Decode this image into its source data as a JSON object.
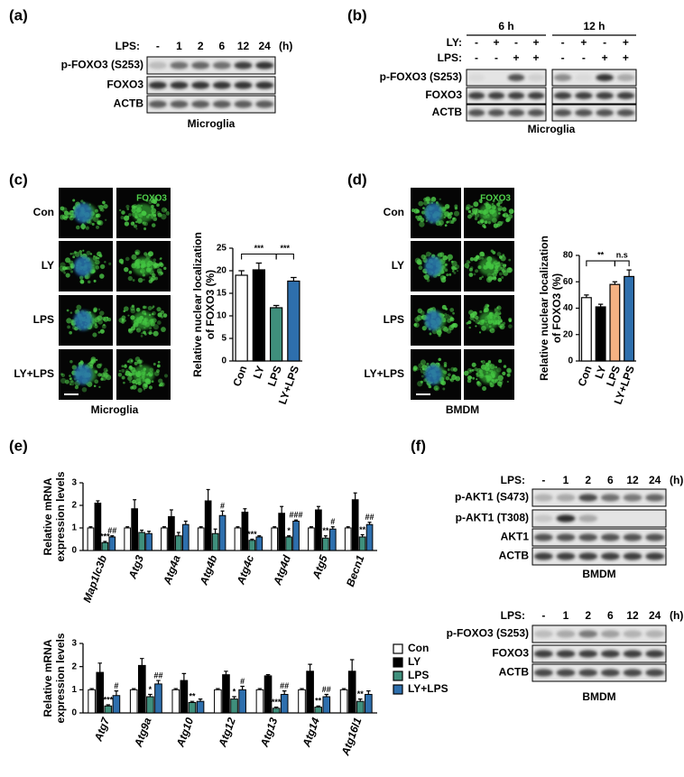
{
  "panels": {
    "a": {
      "label": "(a)",
      "treatment": "LPS:",
      "lanes": [
        "-",
        "1",
        "2",
        "6",
        "12",
        "24"
      ],
      "unit": "(h)",
      "rows": [
        "p-FOXO3 (S253)",
        "FOXO3",
        "ACTB"
      ],
      "caption": "Microglia"
    },
    "b": {
      "label": "(b)",
      "groups": [
        "6 h",
        "12 h"
      ],
      "ly_label": "LY:",
      "ly": [
        "-",
        "+",
        "-",
        "+",
        "-",
        "+",
        "-",
        "+"
      ],
      "lps_label": "LPS:",
      "lps": [
        "-",
        "-",
        "+",
        "+",
        "-",
        "-",
        "+",
        "+"
      ],
      "rows": [
        "p-FOXO3 (S253)",
        "FOXO3",
        "ACTB"
      ],
      "caption": "Microglia"
    },
    "c": {
      "label": "(c)",
      "conditions": [
        "Con",
        "LY",
        "LPS",
        "LY+LPS"
      ],
      "stain": "FOXO3",
      "caption": "Microglia"
    },
    "d": {
      "label": "(d)",
      "conditions": [
        "Con",
        "LY",
        "LPS",
        "LY+LPS"
      ],
      "stain": "FOXO3",
      "caption": "BMDM"
    },
    "e": {
      "label": "(e)"
    },
    "f": {
      "label": "(f)",
      "blots": [
        {
          "treatment": "LPS:",
          "lanes": [
            "-",
            "1",
            "2",
            "6",
            "12",
            "24"
          ],
          "unit": "(h)",
          "rows": [
            "p-AKT1 (S473)",
            "p-AKT1 (T308)",
            "AKT1",
            "ACTB"
          ],
          "caption": "BMDM"
        },
        {
          "treatment": "LPS:",
          "lanes": [
            "-",
            "1",
            "2",
            "6",
            "12",
            "24"
          ],
          "unit": "(h)",
          "rows": [
            "p-FOXO3 (S253)",
            "FOXO3",
            "ACTB"
          ],
          "caption": "BMDM"
        }
      ]
    }
  },
  "chart_data": [
    {
      "type": "bar",
      "y_label": [
        "Relative nuclear localization",
        "of FOXO3 (%)"
      ],
      "categories": [
        "Con",
        "LY",
        "LPS",
        "LY+LPS"
      ],
      "values": [
        19,
        20.2,
        11.8,
        17.7
      ],
      "errors": [
        1,
        1.5,
        0.5,
        0.8
      ],
      "colors": [
        "#ffffff",
        "#000000",
        "#3f8f7c",
        "#2e6fad"
      ],
      "ylim": [
        0,
        25
      ],
      "yticks": [
        0,
        5,
        10,
        15,
        20,
        25
      ],
      "comparisons": [
        {
          "pair": [
            "Con",
            "LPS"
          ],
          "text": "***"
        },
        {
          "pair": [
            "LPS",
            "LY+LPS"
          ],
          "text": "***"
        }
      ]
    },
    {
      "type": "bar",
      "y_label": [
        "Relative nuclear localization",
        "of FOXO3 (%)"
      ],
      "categories": [
        "Con",
        "LY",
        "LPS",
        "LY+LPS"
      ],
      "values": [
        48,
        41,
        58,
        64
      ],
      "errors": [
        2,
        2,
        2,
        5
      ],
      "colors": [
        "#ffffff",
        "#000000",
        "#f4b183",
        "#2e6fad"
      ],
      "ylim": [
        0,
        80
      ],
      "yticks": [
        0,
        20,
        40,
        60,
        80
      ],
      "comparisons": [
        {
          "pair": [
            "Con",
            "LPS"
          ],
          "text": "**"
        },
        {
          "pair": [
            "LPS",
            "LY+LPS"
          ],
          "text": "n.s"
        }
      ]
    },
    {
      "type": "grouped_bar",
      "y_label": [
        "Relative mRNA",
        "expression levels"
      ],
      "legend": false,
      "categories": [
        "Map1lc3b",
        "Atg3",
        "Atg4a",
        "Atg4b",
        "Atg4c",
        "Atg4d",
        "Atg5",
        "Becn1"
      ],
      "ylim": [
        0,
        3
      ],
      "yticks": [
        0,
        1,
        2,
        3
      ],
      "series": [
        {
          "name": "Con",
          "color": "#ffffff",
          "values": [
            1,
            1,
            1,
            1,
            1,
            1,
            1,
            1
          ],
          "errors": [
            0.05,
            0.05,
            0.05,
            0.05,
            0.05,
            0.05,
            0.05,
            0.05
          ]
        },
        {
          "name": "LY",
          "color": "#000000",
          "values": [
            2.1,
            1.85,
            1.5,
            2.2,
            1.7,
            1.65,
            1.8,
            2.25
          ],
          "errors": [
            0.1,
            0.4,
            0.3,
            0.5,
            0.15,
            0.3,
            0.15,
            0.3
          ]
        },
        {
          "name": "LPS",
          "color": "#3f8f7c",
          "values": [
            0.35,
            0.8,
            0.65,
            0.75,
            0.45,
            0.6,
            0.55,
            0.6
          ],
          "errors": [
            0.05,
            0.1,
            0.15,
            0.2,
            0.05,
            0.05,
            0.1,
            0.1
          ]
        },
        {
          "name": "LY+LPS",
          "color": "#2e6fad",
          "values": [
            0.6,
            0.75,
            1.15,
            1.55,
            0.6,
            1.3,
            0.95,
            1.15
          ],
          "errors": [
            0.05,
            0.1,
            0.15,
            0.2,
            0.05,
            0.05,
            0.1,
            0.1
          ]
        }
      ],
      "annotations": [
        {
          "text": "***",
          "category": "Map1lc3b",
          "series": "LPS"
        },
        {
          "text": "##",
          "category": "Map1lc3b",
          "series": "LY+LPS"
        },
        {
          "text": "#",
          "category": "Atg4b",
          "series": "LY+LPS"
        },
        {
          "text": "***",
          "category": "Atg4c",
          "series": "LPS"
        },
        {
          "text": "*",
          "category": "Atg4d",
          "series": "LPS"
        },
        {
          "text": "###",
          "category": "Atg4d",
          "series": "LY+LPS"
        },
        {
          "text": "**",
          "category": "Atg5",
          "series": "LPS"
        },
        {
          "text": "#",
          "category": "Atg5",
          "series": "LY+LPS"
        },
        {
          "text": "**",
          "category": "Becn1",
          "series": "LPS"
        },
        {
          "text": "##",
          "category": "Becn1",
          "series": "LY+LPS"
        }
      ]
    },
    {
      "type": "grouped_bar",
      "y_label": [
        "Relative mRNA",
        "expression levels"
      ],
      "legend": true,
      "categories": [
        "Atg7",
        "Atg9a",
        "Atg10",
        "Atg12",
        "Atg13",
        "Atg14",
        "Atg16l1"
      ],
      "ylim": [
        0,
        3
      ],
      "yticks": [
        0,
        1,
        2,
        3
      ],
      "series": [
        {
          "name": "Con",
          "color": "#ffffff",
          "values": [
            1,
            1,
            1,
            1,
            1,
            1,
            1
          ],
          "errors": [
            0.05,
            0.05,
            0.05,
            0.05,
            0.05,
            0.05,
            0.05
          ]
        },
        {
          "name": "LY",
          "color": "#000000",
          "values": [
            1.75,
            2.05,
            1.4,
            1.65,
            1.6,
            1.8,
            1.8
          ],
          "errors": [
            0.4,
            0.3,
            0.3,
            0.15,
            0.05,
            0.3,
            0.5
          ]
        },
        {
          "name": "LPS",
          "color": "#3f8f7c",
          "values": [
            0.3,
            0.7,
            0.45,
            0.6,
            0.2,
            0.25,
            0.5
          ],
          "errors": [
            0.05,
            0.1,
            0.05,
            0.1,
            0.05,
            0.05,
            0.1
          ]
        },
        {
          "name": "LY+LPS",
          "color": "#2e6fad",
          "values": [
            0.75,
            1.25,
            0.5,
            1.0,
            0.8,
            0.7,
            0.8
          ],
          "errors": [
            0.2,
            0.15,
            0.1,
            0.15,
            0.15,
            0.1,
            0.15
          ]
        }
      ],
      "annotations": [
        {
          "text": "***",
          "category": "Atg7",
          "series": "LPS"
        },
        {
          "text": "#",
          "category": "Atg7",
          "series": "LY+LPS"
        },
        {
          "text": "*",
          "category": "Atg9a",
          "series": "LPS"
        },
        {
          "text": "##",
          "category": "Atg9a",
          "series": "LY+LPS"
        },
        {
          "text": "**",
          "category": "Atg10",
          "series": "LPS"
        },
        {
          "text": "*",
          "category": "Atg12",
          "series": "LPS"
        },
        {
          "text": "#",
          "category": "Atg12",
          "series": "LY+LPS"
        },
        {
          "text": "***",
          "category": "Atg13",
          "series": "LPS"
        },
        {
          "text": "##",
          "category": "Atg13",
          "series": "LY+LPS"
        },
        {
          "text": "**",
          "category": "Atg14",
          "series": "LPS"
        },
        {
          "text": "##",
          "category": "Atg14",
          "series": "LY+LPS"
        },
        {
          "text": "**",
          "category": "Atg16l1",
          "series": "LPS"
        }
      ]
    }
  ]
}
